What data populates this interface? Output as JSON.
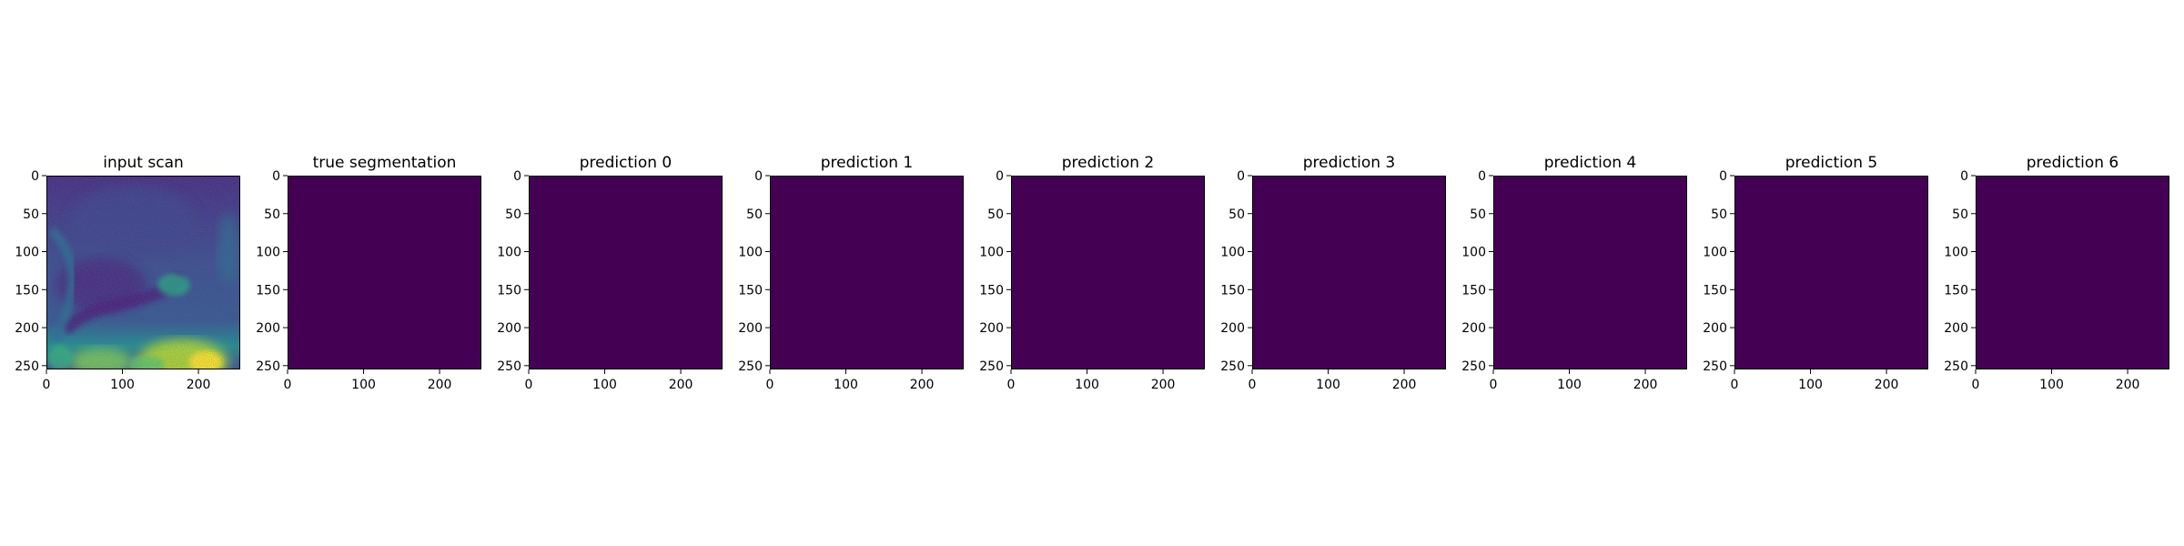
{
  "chart_data": [
    {
      "type": "heatmap",
      "title": "input scan",
      "colormap": "viridis",
      "content": "grayscale MRI-like scan rendered in viridis; bright yellow-green region along bottom edge",
      "xlim": [
        0,
        255
      ],
      "ylim": [
        255,
        0
      ],
      "xticks": [
        "0",
        "100",
        "200"
      ],
      "yticks": [
        "0",
        "50",
        "100",
        "150",
        "200",
        "250"
      ]
    },
    {
      "type": "heatmap",
      "title": "true segmentation",
      "colormap": "viridis",
      "uniform_value": 0,
      "fill_color": "#440154",
      "xlim": [
        0,
        255
      ],
      "ylim": [
        255,
        0
      ],
      "xticks": [
        "0",
        "100",
        "200"
      ],
      "yticks": [
        "0",
        "50",
        "100",
        "150",
        "200",
        "250"
      ]
    },
    {
      "type": "heatmap",
      "title": "prediction 0",
      "colormap": "viridis",
      "uniform_value": 0,
      "fill_color": "#440154",
      "xlim": [
        0,
        255
      ],
      "ylim": [
        255,
        0
      ],
      "xticks": [
        "0",
        "100",
        "200"
      ],
      "yticks": [
        "0",
        "50",
        "100",
        "150",
        "200",
        "250"
      ]
    },
    {
      "type": "heatmap",
      "title": "prediction 1",
      "colormap": "viridis",
      "uniform_value": 0,
      "fill_color": "#440154",
      "xlim": [
        0,
        255
      ],
      "ylim": [
        255,
        0
      ],
      "xticks": [
        "0",
        "100",
        "200"
      ],
      "yticks": [
        "0",
        "50",
        "100",
        "150",
        "200",
        "250"
      ]
    },
    {
      "type": "heatmap",
      "title": "prediction 2",
      "colormap": "viridis",
      "uniform_value": 0,
      "fill_color": "#440154",
      "xlim": [
        0,
        255
      ],
      "ylim": [
        255,
        0
      ],
      "xticks": [
        "0",
        "100",
        "200"
      ],
      "yticks": [
        "0",
        "50",
        "100",
        "150",
        "200",
        "250"
      ]
    },
    {
      "type": "heatmap",
      "title": "prediction 3",
      "colormap": "viridis",
      "uniform_value": 0,
      "fill_color": "#440154",
      "xlim": [
        0,
        255
      ],
      "ylim": [
        255,
        0
      ],
      "xticks": [
        "0",
        "100",
        "200"
      ],
      "yticks": [
        "0",
        "50",
        "100",
        "150",
        "200",
        "250"
      ]
    },
    {
      "type": "heatmap",
      "title": "prediction 4",
      "colormap": "viridis",
      "uniform_value": 0,
      "fill_color": "#440154",
      "xlim": [
        0,
        255
      ],
      "ylim": [
        255,
        0
      ],
      "xticks": [
        "0",
        "100",
        "200"
      ],
      "yticks": [
        "0",
        "50",
        "100",
        "150",
        "200",
        "250"
      ]
    },
    {
      "type": "heatmap",
      "title": "prediction 5",
      "colormap": "viridis",
      "uniform_value": 0,
      "fill_color": "#440154",
      "xlim": [
        0,
        255
      ],
      "ylim": [
        255,
        0
      ],
      "xticks": [
        "0",
        "100",
        "200"
      ],
      "yticks": [
        "0",
        "50",
        "100",
        "150",
        "200",
        "250"
      ]
    },
    {
      "type": "heatmap",
      "title": "prediction 6",
      "colormap": "viridis",
      "uniform_value": 0,
      "fill_color": "#440154",
      "xlim": [
        0,
        255
      ],
      "ylim": [
        255,
        0
      ],
      "xticks": [
        "0",
        "100",
        "200"
      ],
      "yticks": [
        "0",
        "50",
        "100",
        "150",
        "200",
        "250"
      ]
    }
  ]
}
